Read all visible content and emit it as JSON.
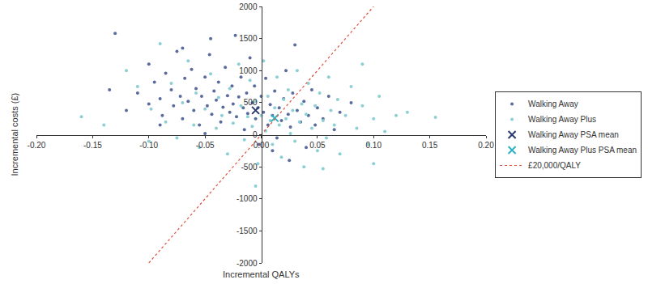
{
  "chart_data": {
    "type": "scatter",
    "x_label": "Incremental QALYs",
    "y_label": "Incremental costs (£)",
    "xlim": [
      -0.2,
      0.2
    ],
    "ylim": [
      -2000,
      2000
    ],
    "xticks": [
      {
        "value": -0.2,
        "label": "-0.20"
      },
      {
        "value": -0.15,
        "label": "-0.15"
      },
      {
        "value": -0.1,
        "label": "-0.10"
      },
      {
        "value": -0.05,
        "label": "-0.05"
      },
      {
        "value": 0,
        "label": "0.00"
      },
      {
        "value": 0.05,
        "label": "0.05"
      },
      {
        "value": 0.1,
        "label": "0.10"
      },
      {
        "value": 0.15,
        "label": "0.15"
      },
      {
        "value": 0.2,
        "label": "0.20"
      }
    ],
    "yticks": [
      -2000,
      -1500,
      -1000,
      -500,
      0,
      500,
      1000,
      1500,
      2000
    ],
    "grid": false,
    "legend": "right",
    "series": [
      {
        "name": "Walking Away",
        "type": "scatter",
        "marker": "circle",
        "color": "#5a6b9e",
        "x": [
          -0.13,
          -0.135,
          -0.12,
          -0.11,
          -0.1,
          -0.095,
          -0.09,
          -0.088,
          -0.085,
          -0.08,
          -0.078,
          -0.075,
          -0.072,
          -0.07,
          -0.068,
          -0.065,
          -0.062,
          -0.06,
          -0.058,
          -0.055,
          -0.053,
          -0.05,
          -0.048,
          -0.046,
          -0.044,
          -0.042,
          -0.04,
          -0.038,
          -0.036,
          -0.034,
          -0.032,
          -0.03,
          -0.028,
          -0.026,
          -0.025,
          -0.023,
          -0.022,
          -0.02,
          -0.018,
          -0.016,
          -0.015,
          -0.013,
          -0.012,
          -0.01,
          -0.008,
          -0.006,
          -0.005,
          -0.003,
          -0.002,
          0,
          0.002,
          0.004,
          0.006,
          0.008,
          0.01,
          0.012,
          0.014,
          0.016,
          0.018,
          0.02,
          0.022,
          0.024,
          0.026,
          0.028,
          0.03,
          0.032,
          0.035,
          0.038,
          0.04,
          0.042,
          0.045,
          0.048,
          0.05,
          0.055,
          0.06,
          0.065,
          0.07,
          0.08,
          -0.045,
          -0.07,
          0.025,
          -0.05,
          -0.09,
          -0.1,
          0.01
        ],
        "values": [
          1580,
          700,
          380,
          650,
          1100,
          820,
          560,
          300,
          960,
          700,
          450,
          1300,
          600,
          250,
          880,
          520,
          1020,
          380,
          720,
          150,
          600,
          900,
          450,
          1250,
          320,
          680,
          540,
          820,
          200,
          430,
          1050,
          610,
          350,
          760,
          480,
          1550,
          280,
          590,
          900,
          420,
          80,
          650,
          330,
          1200,
          500,
          760,
          250,
          420,
          -150,
          600,
          350,
          880,
          150,
          470,
          300,
          680,
          -50,
          420,
          220,
          560,
          1000,
          320,
          120,
          650,
          1400,
          380,
          200,
          520,
          -200,
          300,
          700,
          150,
          420,
          250,
          600,
          80,
          350,
          500,
          1500,
          1350,
          -400,
          20,
          150,
          480,
          -250
        ]
      },
      {
        "name": "Walking Away Plus",
        "type": "scatter",
        "marker": "circle",
        "color": "#8ccfd4",
        "x": [
          -0.16,
          -0.14,
          -0.12,
          -0.11,
          -0.1,
          -0.098,
          -0.09,
          -0.085,
          -0.08,
          -0.075,
          -0.07,
          -0.065,
          -0.06,
          -0.058,
          -0.055,
          -0.05,
          -0.045,
          -0.04,
          -0.038,
          -0.035,
          -0.03,
          -0.028,
          -0.025,
          -0.02,
          -0.018,
          -0.015,
          -0.012,
          -0.01,
          -0.008,
          -0.005,
          -0.003,
          0,
          0.002,
          0.004,
          0.006,
          0.008,
          0.01,
          0.012,
          0.014,
          0.016,
          0.018,
          0.02,
          0.022,
          0.024,
          0.026,
          0.028,
          0.03,
          0.032,
          0.034,
          0.036,
          0.038,
          0.04,
          0.042,
          0.045,
          0.048,
          0.05,
          0.052,
          0.055,
          0.058,
          0.06,
          0.062,
          0.065,
          0.068,
          0.07,
          0.075,
          0.08,
          0.085,
          0.09,
          0.095,
          0.1,
          0.105,
          0.11,
          0.12,
          0.13,
          0.155,
          0.055,
          -0.005,
          0.1,
          0.09
        ],
        "values": [
          280,
          150,
          1000,
          750,
          -100,
          400,
          1420,
          200,
          800,
          -50,
          500,
          1150,
          150,
          650,
          -200,
          400,
          950,
          100,
          580,
          300,
          -300,
          720,
          180,
          1100,
          450,
          -80,
          280,
          850,
          130,
          520,
          -450,
          300,
          1150,
          60,
          600,
          220,
          -150,
          420,
          900,
          150,
          -350,
          550,
          250,
          700,
          20,
          380,
          -100,
          1000,
          200,
          480,
          -500,
          320,
          800,
          100,
          450,
          -250,
          650,
          220,
          -50,
          900,
          380,
          150,
          550,
          -300,
          300,
          750,
          100,
          450,
          -150,
          250,
          600,
          50,
          300,
          350,
          270,
          -530,
          -800,
          -450,
          1100
        ]
      },
      {
        "name": "Walking Away PSA mean",
        "type": "scatter",
        "marker": "x",
        "color": "#2b3a70",
        "x": [
          -0.005
        ],
        "values": [
          380
        ]
      },
      {
        "name": "Walking Away Plus PSA mean",
        "type": "scatter",
        "marker": "x",
        "color": "#2fb3c4",
        "x": [
          0.012
        ],
        "values": [
          260
        ]
      },
      {
        "name": "£20,000/QALY",
        "type": "line",
        "line_style": "dotted",
        "color": "#e0503c",
        "x": [
          -0.1,
          0.1
        ],
        "values": [
          -2000,
          2000
        ]
      }
    ]
  }
}
